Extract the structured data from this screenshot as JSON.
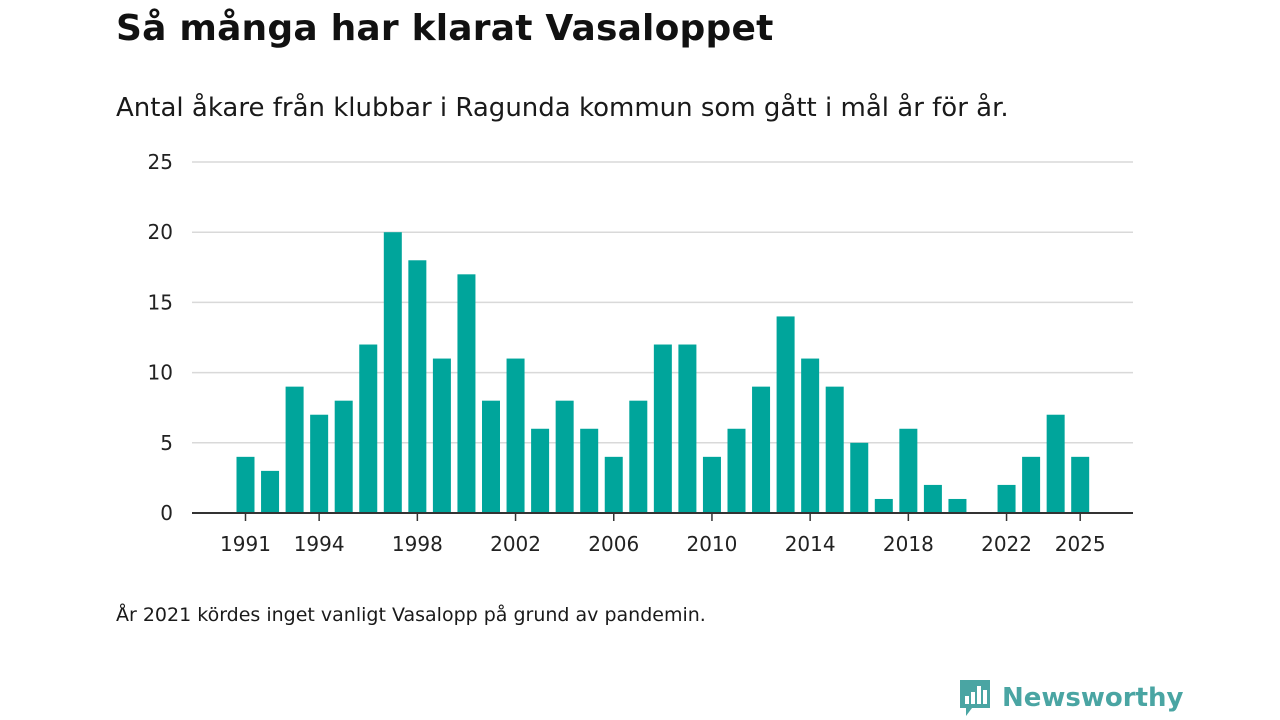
{
  "title": "Så många har klarat Vasaloppet",
  "subtitle": "Antal åkare från klubbar i Ragunda kommun som gått i mål år för år.",
  "footnote": "År 2021 kördes inget vanligt Vasalopp på grund av pandemin.",
  "brand": {
    "name": "Newsworthy",
    "logo_icon": "newsworthy-bar-chart-logo-icon",
    "color": "#4aa5a3"
  },
  "colors": {
    "bar": "#00a59b",
    "grid": "#d9d9d9",
    "axis": "#333333"
  },
  "chart_data": {
    "type": "bar",
    "title": "Så många har klarat Vasaloppet",
    "xlabel": "",
    "ylabel": "",
    "categories": [
      1991,
      1992,
      1993,
      1994,
      1995,
      1996,
      1997,
      1998,
      1999,
      2000,
      2001,
      2002,
      2003,
      2004,
      2005,
      2006,
      2007,
      2008,
      2009,
      2010,
      2011,
      2012,
      2013,
      2014,
      2015,
      2016,
      2017,
      2018,
      2019,
      2020,
      2021,
      2022,
      2023,
      2024,
      2025
    ],
    "values": [
      4,
      3,
      9,
      7,
      8,
      12,
      20,
      18,
      11,
      17,
      8,
      11,
      6,
      8,
      6,
      4,
      8,
      12,
      12,
      4,
      6,
      9,
      14,
      11,
      9,
      5,
      1,
      6,
      2,
      1,
      null,
      2,
      4,
      7,
      4
    ],
    "ylim": [
      0,
      25
    ],
    "yticks": [
      0,
      5,
      10,
      15,
      20,
      25
    ],
    "xticks": [
      1991,
      1994,
      1998,
      2002,
      2006,
      2010,
      2014,
      2018,
      2022,
      2025
    ],
    "grid": true
  }
}
